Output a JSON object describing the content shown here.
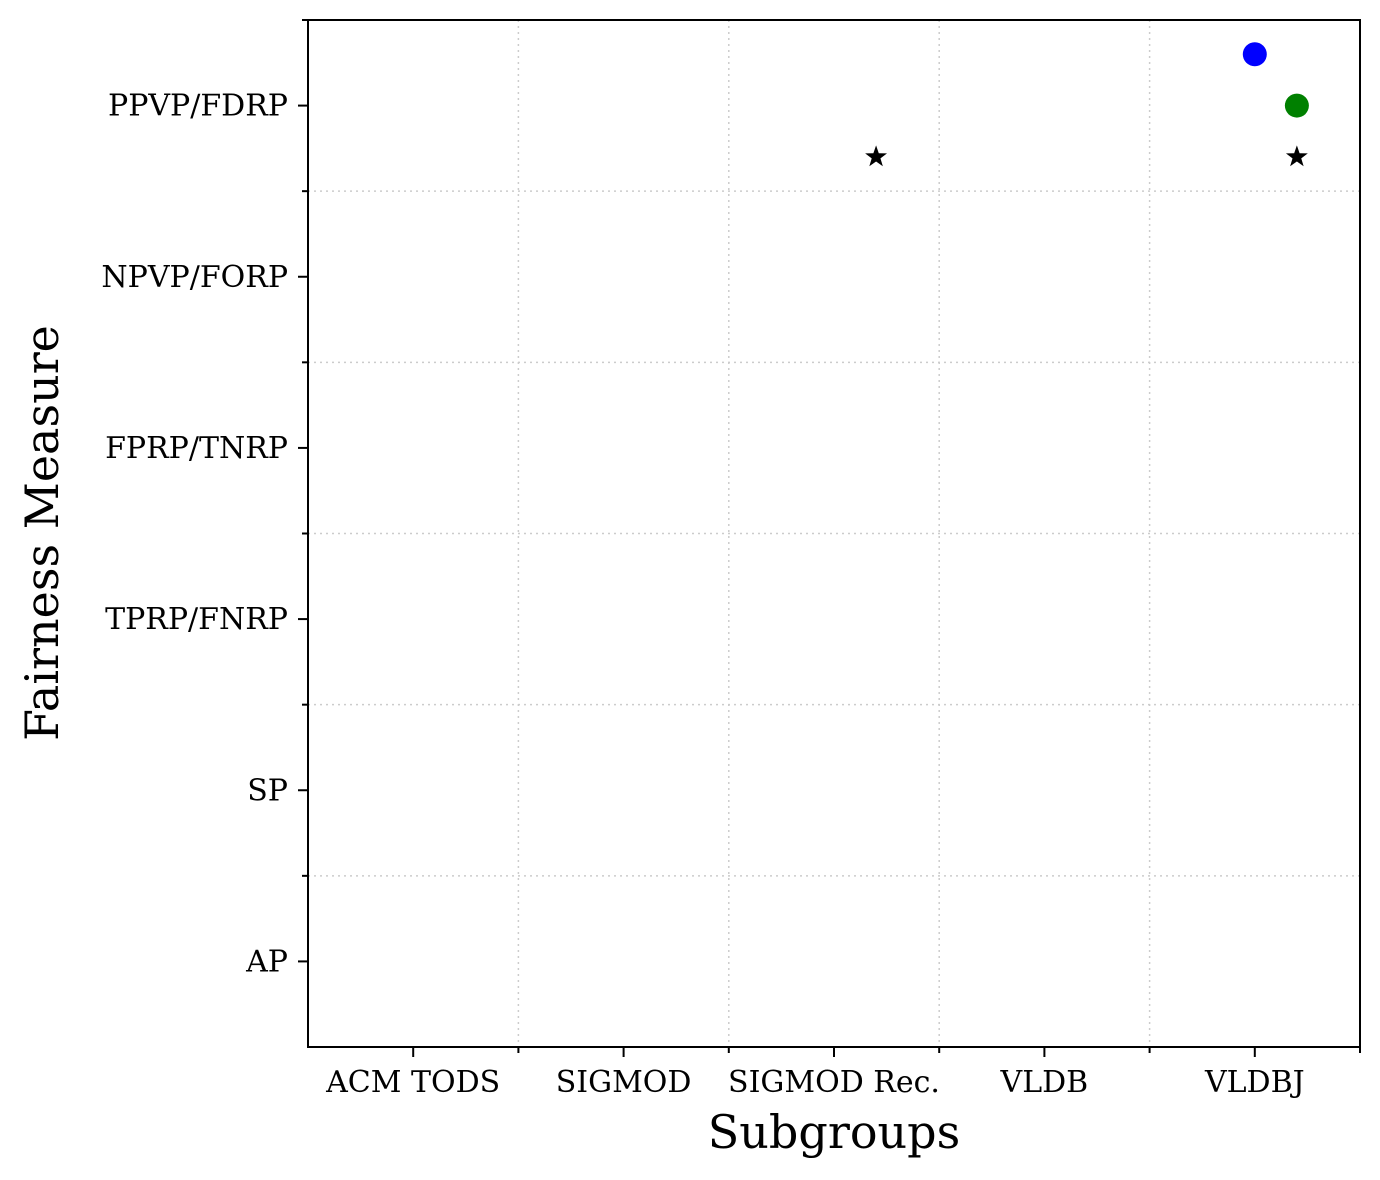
{
  "chart_data": {
    "type": "scatter",
    "xlabel": "Subgroups",
    "ylabel": "Fairness Measure",
    "x_categories": [
      "ACM TODS",
      "SIGMOD",
      "SIGMOD Rec.",
      "VLDB",
      "VLDBJ"
    ],
    "y_categories": [
      "AP",
      "SP",
      "TPRP/FNRP",
      "FPRP/TNRP",
      "NPVP/FORP",
      "PPVP/FDRP"
    ],
    "xlim": [
      -0.5,
      4.5
    ],
    "ylim": [
      -0.5,
      5.5
    ],
    "grid": true,
    "points": [
      {
        "x": "VLDBJ",
        "x_offset": 0.0,
        "y": "PPVP/FDRP",
        "y_offset": 0.3,
        "marker": "circle",
        "color": "#0000ff"
      },
      {
        "x": "VLDBJ",
        "x_offset": 0.2,
        "y": "PPVP/FDRP",
        "y_offset": 0.0,
        "marker": "circle",
        "color": "#008000"
      },
      {
        "x": "SIGMOD Rec.",
        "x_offset": 0.2,
        "y": "PPVP/FDRP",
        "y_offset": -0.3,
        "marker": "star",
        "color": "#000000"
      },
      {
        "x": "VLDBJ",
        "x_offset": 0.2,
        "y": "PPVP/FDRP",
        "y_offset": -0.3,
        "marker": "star",
        "color": "#000000"
      }
    ]
  }
}
